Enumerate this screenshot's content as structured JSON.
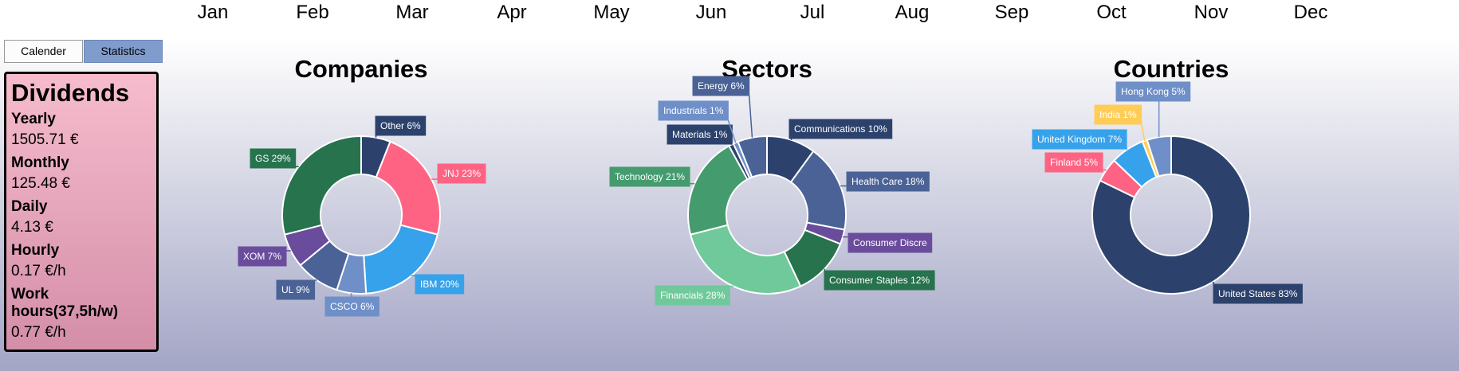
{
  "months": [
    "Jan",
    "Feb",
    "Mar",
    "Apr",
    "May",
    "Jun",
    "Jul",
    "Aug",
    "Sep",
    "Oct",
    "Nov",
    "Dec"
  ],
  "tabs": {
    "calender": "Calender",
    "statistics": "Statistics"
  },
  "dividends": {
    "title": "Dividends",
    "items": [
      {
        "label": "Yearly",
        "value": "1505.71 €"
      },
      {
        "label": "Monthly",
        "value": "125.48 €"
      },
      {
        "label": "Daily",
        "value": "4.13 €"
      },
      {
        "label": "Hourly",
        "value": "0.17 €/h"
      },
      {
        "label": "Work hours(37,5h/w)",
        "value": "0.77 €/h"
      }
    ]
  },
  "chart_data": [
    {
      "type": "pie",
      "title": "Companies",
      "series": [
        {
          "name": "Other",
          "value": 6,
          "label": "Other 6%",
          "color": "#2c426d"
        },
        {
          "name": "JNJ",
          "value": 23,
          "label": "JNJ 23%",
          "color": "#ff6384"
        },
        {
          "name": "IBM",
          "value": 20,
          "label": "IBM 20%",
          "color": "#36a2eb"
        },
        {
          "name": "CSCO",
          "value": 6,
          "label": "CSCO 6%",
          "color": "#6f8fc8"
        },
        {
          "name": "UL",
          "value": 9,
          "label": "UL 9%",
          "color": "#4a6296"
        },
        {
          "name": "XOM",
          "value": 7,
          "label": "XOM 7%",
          "color": "#6a4c9c"
        },
        {
          "name": "GS",
          "value": 29,
          "label": "GS 29%",
          "color": "#26734d"
        }
      ]
    },
    {
      "type": "pie",
      "title": "Sectors",
      "series": [
        {
          "name": "Communications",
          "value": 10,
          "label": "Communications 10%",
          "color": "#2c426d"
        },
        {
          "name": "Health Care",
          "value": 18,
          "label": "Health Care 18%",
          "color": "#4a6296"
        },
        {
          "name": "Consumer Discretionary",
          "value": 3,
          "label": "Consumer Discre",
          "color": "#6a4c9c"
        },
        {
          "name": "Consumer Staples",
          "value": 12,
          "label": "Consumer Staples 12%",
          "color": "#26734d"
        },
        {
          "name": "Financials",
          "value": 28,
          "label": "Financials 28%",
          "color": "#70c99a"
        },
        {
          "name": "Technology",
          "value": 21,
          "label": "Technology 21%",
          "color": "#449b6e"
        },
        {
          "name": "Materials",
          "value": 1,
          "label": "Materials 1%",
          "color": "#2c426d"
        },
        {
          "name": "Industrials",
          "value": 1,
          "label": "Industrials 1%",
          "color": "#6f8fc8"
        },
        {
          "name": "Energy",
          "value": 6,
          "label": "Energy 6%",
          "color": "#4a6296"
        }
      ]
    },
    {
      "type": "pie",
      "title": "Countries",
      "series": [
        {
          "name": "United States",
          "value": 83,
          "label": "United States 83%",
          "color": "#2c426d"
        },
        {
          "name": "Finland",
          "value": 5,
          "label": "Finland 5%",
          "color": "#ff6384"
        },
        {
          "name": "United Kingdom",
          "value": 7,
          "label": "United Kingdom 7%",
          "color": "#36a2eb"
        },
        {
          "name": "India",
          "value": 1,
          "label": "India 1%",
          "color": "#ffcd56"
        },
        {
          "name": "Hong Kong",
          "value": 5,
          "label": "Hong Kong 5%",
          "color": "#6f8fc8"
        }
      ]
    }
  ]
}
